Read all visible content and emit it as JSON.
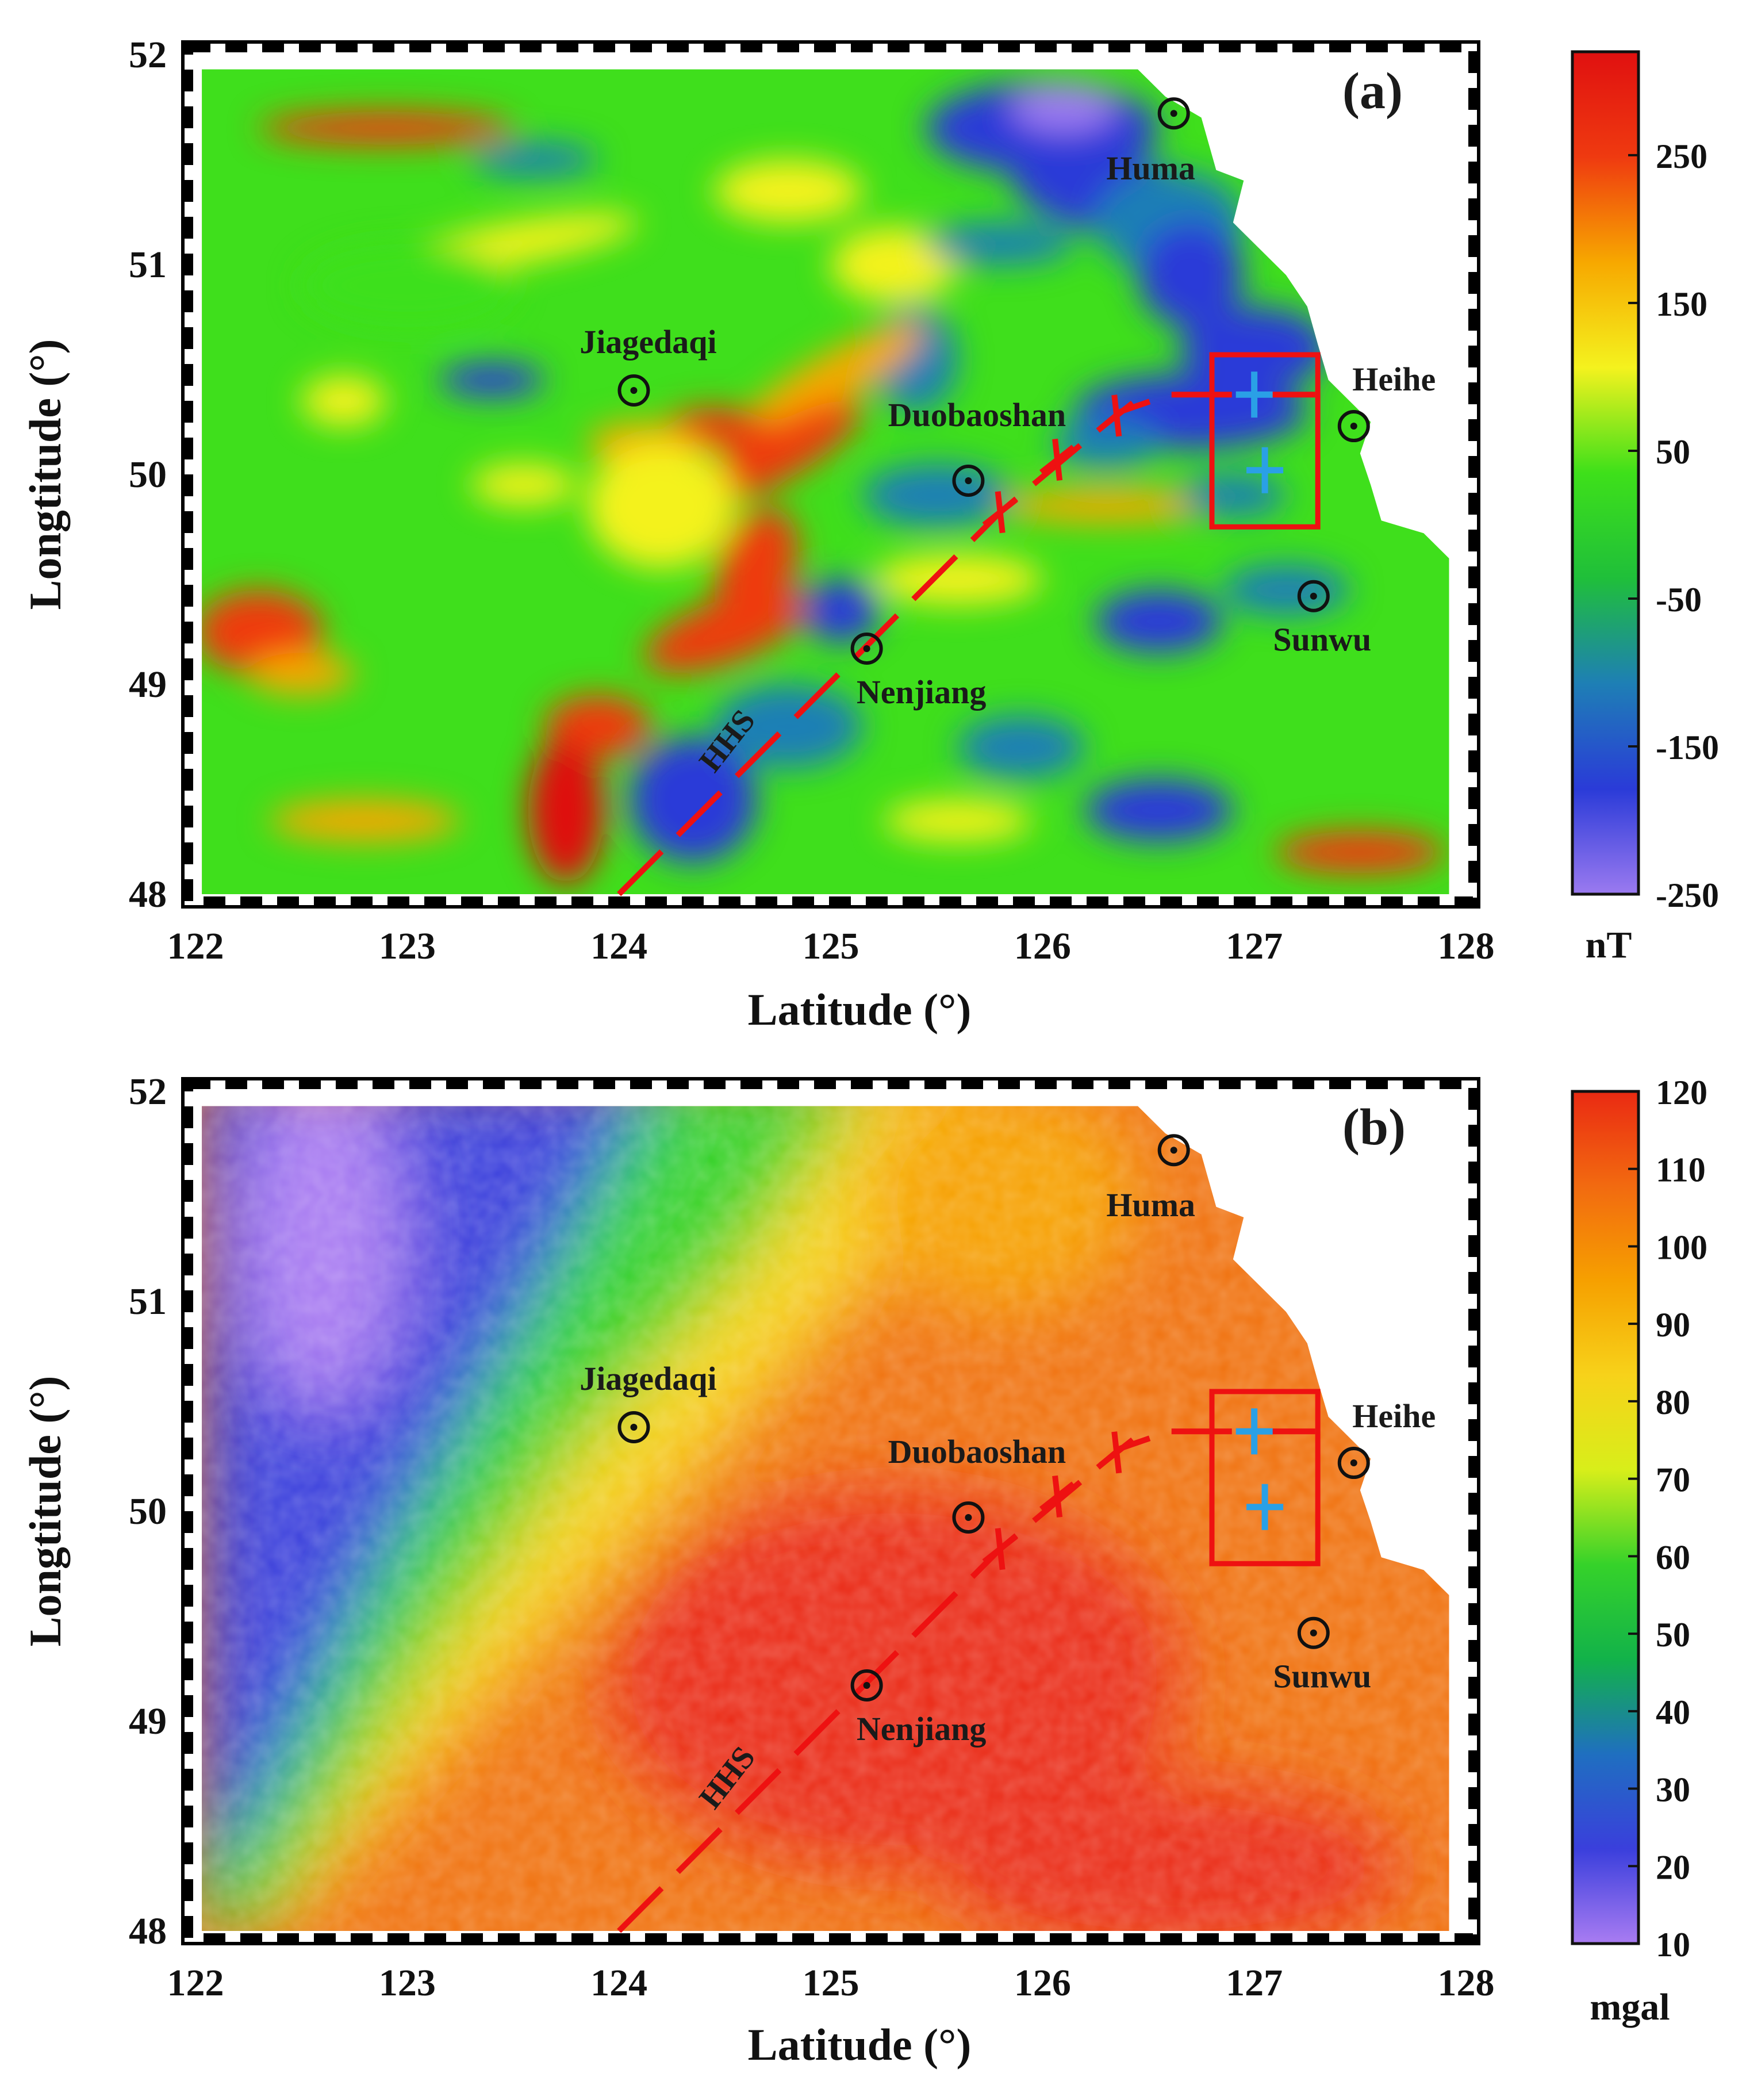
{
  "figure": {
    "panels": [
      {
        "id": "a",
        "panel_label": "(a)",
        "colorbar_unit": "nT",
        "colorbar_ticks": [
          "250",
          "150",
          "50",
          "-50",
          "-150",
          "-250"
        ],
        "colorbar_tick_values": [
          250,
          150,
          50,
          -50,
          -150,
          -250
        ],
        "colorbar_range": [
          -250,
          320
        ],
        "colors": [
          "#9b7af0",
          "#2a3bd8",
          "#1e7fb5",
          "#1fbf3a",
          "#3ee01a",
          "#f4f21e",
          "#f7a800",
          "#ef3a10",
          "#e01010"
        ],
        "xlabel": "Latitude (°)",
        "ylabel": "Longtitude (°)",
        "xticks": [
          "122",
          "123",
          "124",
          "125",
          "126",
          "127",
          "128"
        ],
        "yticks": [
          "52",
          "51",
          "50",
          "49",
          "48"
        ]
      },
      {
        "id": "b",
        "panel_label": "(b)",
        "colorbar_unit": "mgal",
        "colorbar_ticks": [
          "120",
          "110",
          "100",
          "90",
          "80",
          "70",
          "60",
          "50",
          "40",
          "30",
          "20",
          "10"
        ],
        "colorbar_tick_values": [
          120,
          110,
          100,
          90,
          80,
          70,
          60,
          50,
          40,
          30,
          20,
          10
        ],
        "colorbar_range": [
          10,
          120
        ],
        "colors": [
          "#a97cf2",
          "#3a3fdc",
          "#1f6fc0",
          "#12b24a",
          "#35d22a",
          "#d8ee1a",
          "#f7d21a",
          "#f6a000",
          "#f26a10",
          "#ea2a12"
        ],
        "xlabel": "Latitude (°)",
        "ylabel": "Longtitude (°)",
        "xticks": [
          "122",
          "123",
          "124",
          "125",
          "126",
          "127",
          "128"
        ],
        "yticks": [
          "52",
          "51",
          "50",
          "49",
          "48"
        ]
      }
    ],
    "cities": [
      {
        "name": "Huma",
        "lon": 126.62,
        "lat": 51.72
      },
      {
        "name": "Jiagedaqi",
        "lon": 124.07,
        "lat": 50.4
      },
      {
        "name": "Duobaoshan",
        "lon": 125.65,
        "lat": 49.97
      },
      {
        "name": "Heihe",
        "lon": 127.47,
        "lat": 50.23
      },
      {
        "name": "Nenjiang",
        "lon": 125.17,
        "lat": 49.17
      },
      {
        "name": "Sunwu",
        "lon": 127.28,
        "lat": 49.42
      }
    ],
    "fault_label": "HHS",
    "fault_line": [
      [
        124.0,
        48.0
      ],
      [
        125.8,
        49.82
      ],
      [
        126.37,
        50.3
      ],
      [
        126.6,
        50.38
      ],
      [
        127.3,
        50.38
      ]
    ],
    "fault_ticks": [
      [
        125.8,
        49.82
      ],
      [
        126.07,
        50.07
      ],
      [
        126.35,
        50.28
      ]
    ],
    "study_box": {
      "lon_min": 126.8,
      "lon_max": 127.3,
      "lat_min": 49.75,
      "lat_max": 50.57
    },
    "blue_crosses": [
      [
        127.0,
        50.38
      ],
      [
        127.05,
        50.02
      ]
    ]
  }
}
